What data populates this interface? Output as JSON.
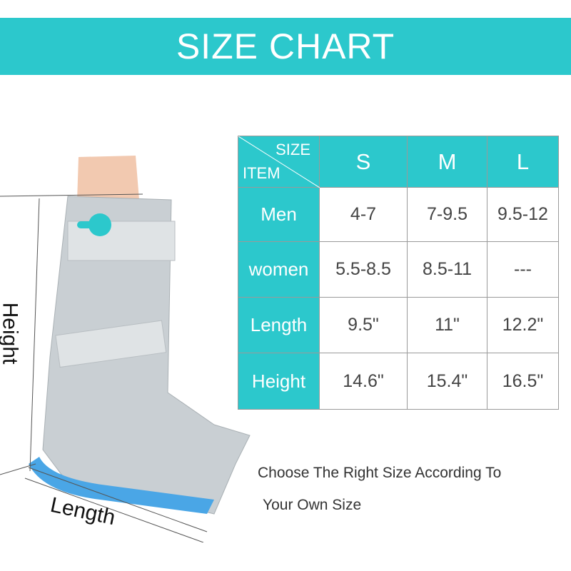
{
  "title": "SIZE CHART",
  "table": {
    "corner_top": "SIZE",
    "corner_bottom": "ITEM",
    "sizes": [
      "S",
      "M",
      "L"
    ],
    "rows": [
      {
        "label": "Men",
        "values": [
          "4-7",
          "7-9.5",
          "9.5-12"
        ]
      },
      {
        "label": "women",
        "values": [
          "5.5-8.5",
          "8.5-11",
          "---"
        ]
      },
      {
        "label": "Length",
        "values": [
          "9.5\"",
          "11\"",
          "12.2\""
        ]
      },
      {
        "label": "Height",
        "values": [
          "14.6\"",
          "15.4\"",
          "16.5\""
        ]
      }
    ]
  },
  "note_line1": "Choose The Right Size According To",
  "note_line2": "Your Own Size",
  "dim_height": "Height",
  "dim_length": "Length",
  "colors": {
    "accent": "#2cc8cc"
  }
}
